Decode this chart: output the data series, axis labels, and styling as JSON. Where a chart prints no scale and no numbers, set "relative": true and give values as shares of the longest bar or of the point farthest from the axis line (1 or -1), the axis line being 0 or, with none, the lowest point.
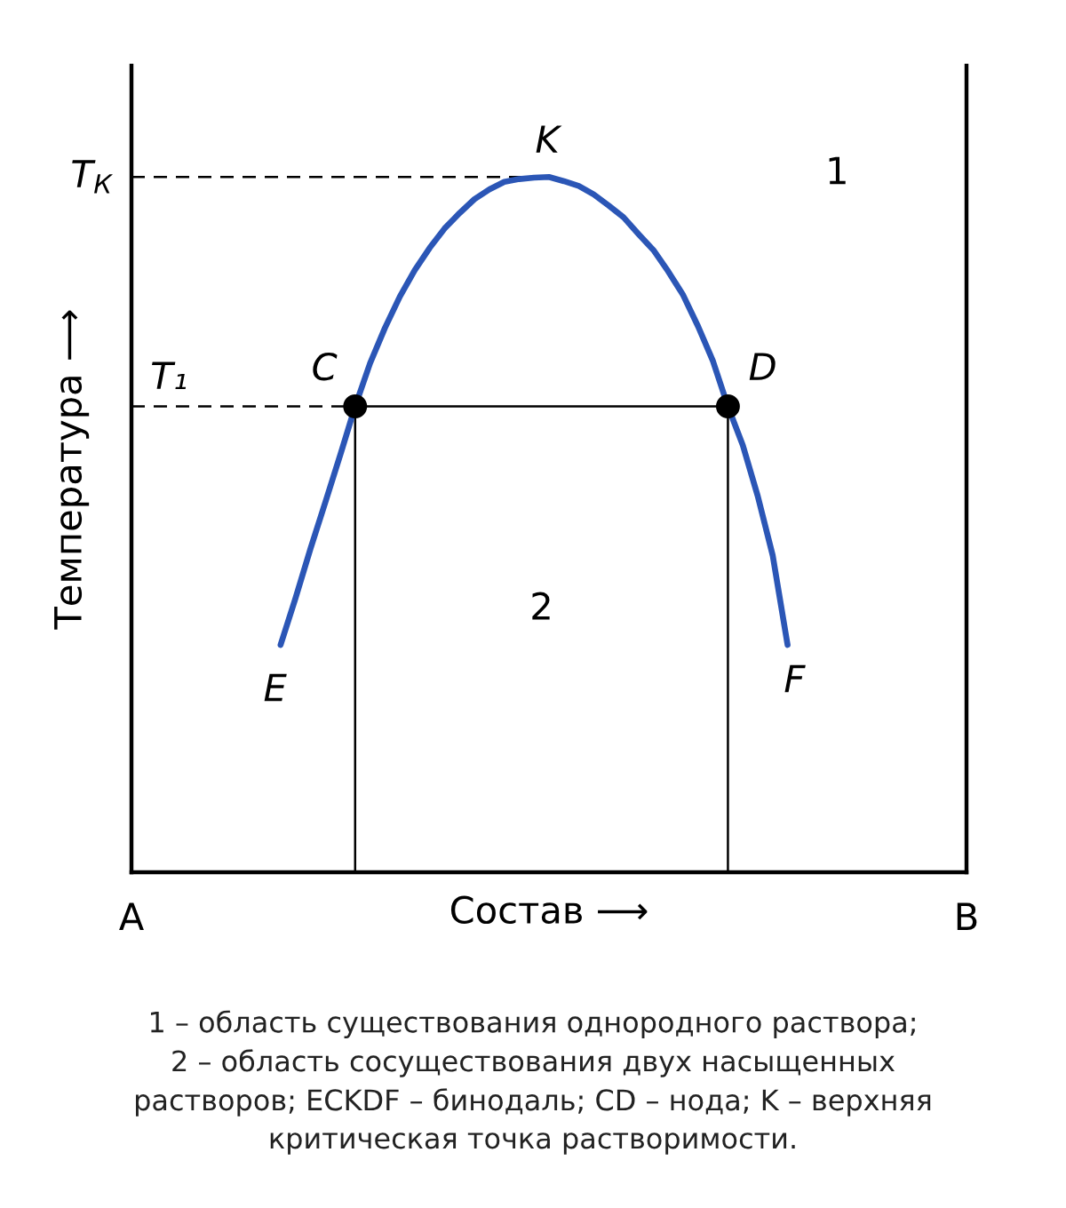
{
  "chart_data": {
    "type": "line",
    "relative": true,
    "xlabel": "Состав ⟶",
    "ylabel": "Температура ⟶",
    "categories": [
      "A",
      null,
      null,
      null,
      null,
      null,
      null,
      null,
      null,
      null,
      null,
      null,
      null,
      null,
      null,
      null,
      null,
      null,
      null,
      null,
      null,
      null,
      null,
      null,
      null,
      null,
      null,
      null,
      null,
      null,
      null,
      null,
      null,
      null,
      null,
      null,
      null,
      null,
      null,
      null,
      null,
      null,
      null,
      null,
      null,
      null,
      null,
      null,
      null,
      null,
      null,
      null,
      null,
      null,
      null,
      null,
      "B"
    ],
    "series": [
      {
        "color": "#2b56b6",
        "values": [
          null,
          null,
          null,
          null,
          null,
          null,
          null,
          null,
          null,
          null,
          0.327,
          0.394,
          0.465,
          0.532,
          0.6,
          0.67,
          0.732,
          0.783,
          0.828,
          0.866,
          0.898,
          0.926,
          0.948,
          0.968,
          0.982,
          0.993,
          0.997,
          0.999,
          1,
          0.994,
          0.987,
          0.975,
          0.959,
          0.942,
          0.918,
          0.895,
          0.864,
          0.83,
          0.785,
          0.735,
          0.67,
          0.614,
          0.541,
          0.456,
          0.327,
          null,
          null,
          null,
          null,
          null,
          null,
          null,
          null,
          null,
          null,
          null,
          null
        ]
      },
      {
        "color": "#000000",
        "values": [
          null,
          null,
          null,
          null,
          null,
          null,
          null,
          null,
          null,
          null,
          null,
          null,
          null,
          null,
          null,
          0.67,
          0.67,
          0.67,
          0.67,
          0.67,
          0.67,
          0.67,
          0.67,
          0.67,
          0.67,
          0.67,
          0.67,
          0.67,
          0.67,
          0.67,
          0.67,
          0.67,
          0.67,
          0.67,
          0.67,
          0.67,
          0.67,
          0.67,
          0.67,
          0.67,
          0.67,
          null,
          null,
          null,
          null,
          null,
          null,
          null,
          null,
          null,
          null,
          null,
          null,
          null,
          null,
          null,
          null
        ]
      },
      {
        "type": "lollipop",
        "color": "#000000",
        "marker": "circle",
        "values": [
          null,
          null,
          null,
          null,
          null,
          null,
          null,
          null,
          null,
          null,
          null,
          null,
          null,
          null,
          null,
          0.67,
          null,
          null,
          null,
          null,
          null,
          null,
          null,
          null,
          null,
          null,
          null,
          null,
          null,
          null,
          null,
          null,
          null,
          null,
          null,
          null,
          null,
          null,
          null,
          null,
          0.67,
          null,
          null,
          null,
          null,
          null,
          null,
          null,
          null,
          null,
          null,
          null,
          null,
          null,
          null,
          null,
          null
        ]
      }
    ],
    "ref_lines": [
      {
        "axis": "y",
        "value": 1,
        "label": "T$_{К}$",
        "line_style": "dashed",
        "color": "#000000"
      },
      {
        "axis": "y",
        "value": 0.67,
        "line_style": "dashed",
        "color": "#000000"
      }
    ],
    "annotations": [
      "K",
      "T₁",
      "C",
      "D",
      "E",
      "F",
      "1",
      "2",
      "1 – область существования однородного раствора;\n2 – область сосуществования двух насыщенных\nрастворов; ECKDF – бинодаль; CD – нода; K – верхняя\nкритическая точка растворимости."
    ]
  }
}
